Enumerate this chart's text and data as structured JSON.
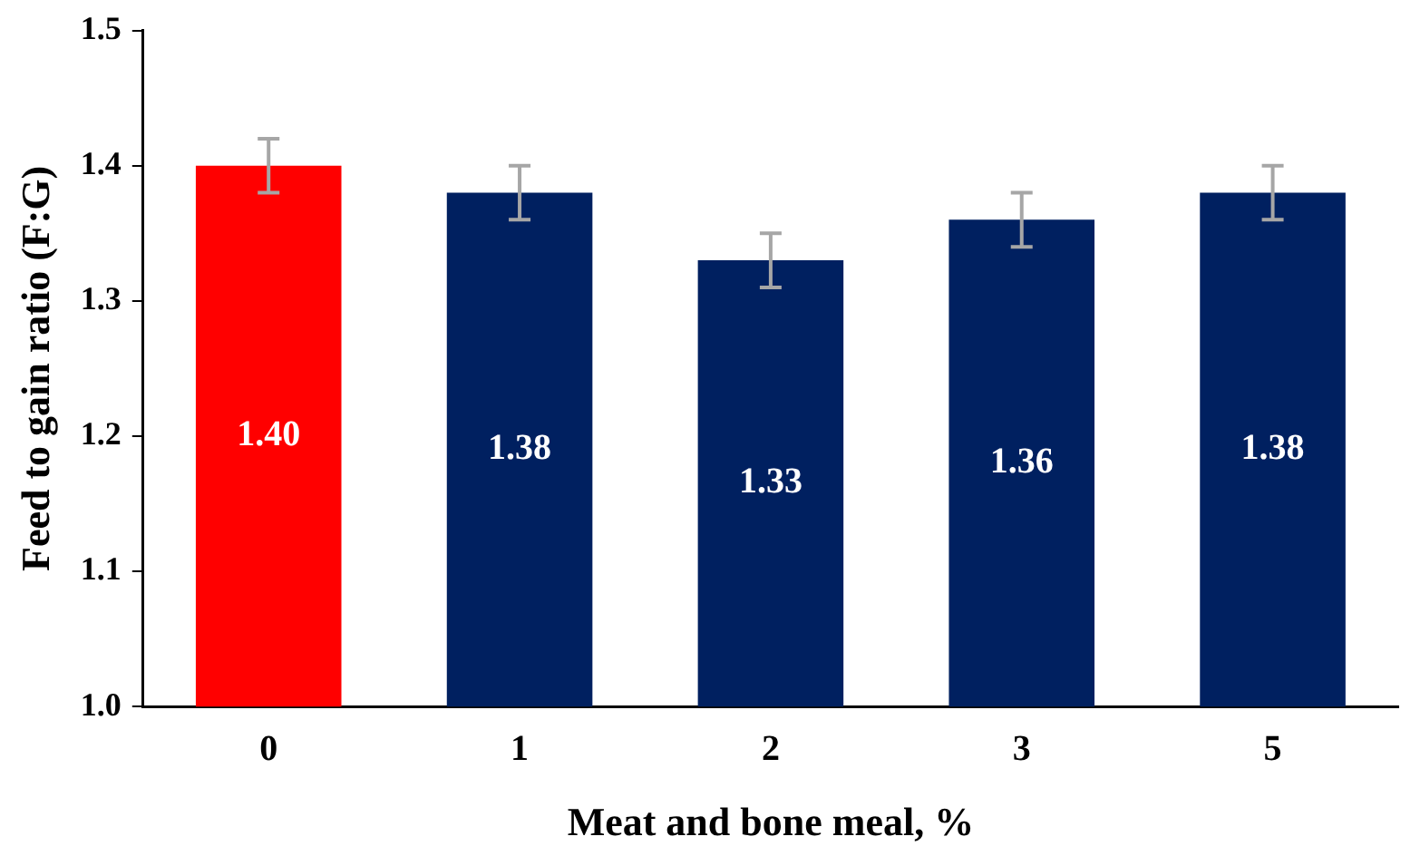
{
  "chart_data": {
    "type": "bar",
    "xlabel": "Meat and bone meal, %",
    "ylabel": "Feed to gain ratio (F:G)",
    "categories": [
      "0",
      "1",
      "2",
      "3",
      "5"
    ],
    "values": [
      1.4,
      1.38,
      1.33,
      1.36,
      1.38
    ],
    "colors": [
      "#ff0000",
      "#002060",
      "#002060",
      "#002060",
      "#002060"
    ],
    "errors": [
      0.02,
      0.02,
      0.02,
      0.02,
      0.02
    ],
    "value_labels": [
      "1.40",
      "1.38",
      "1.33",
      "1.36",
      "1.38"
    ],
    "ylim": [
      1.0,
      1.5
    ],
    "yticks": [
      {
        "value": 1.0,
        "label": "1.0"
      },
      1.1,
      1.2,
      1.3,
      1.4,
      1.5
    ],
    "grid": false,
    "legend": false
  }
}
